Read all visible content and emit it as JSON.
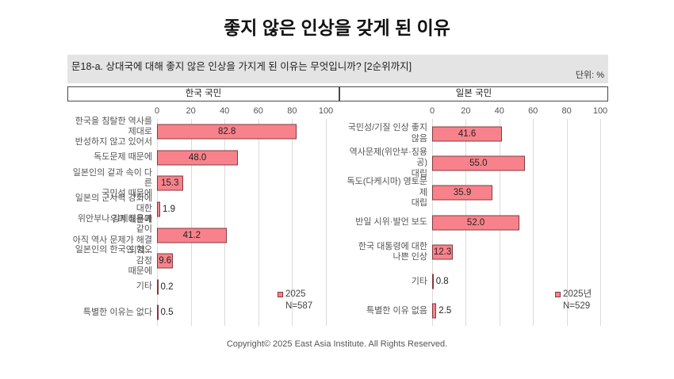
{
  "page": {
    "title": "좋지 않은 인상을 갖게 된 이유",
    "question": "문18-a. 상대국에 대해 좋지 않은 인상을 가지게 된 이유는 무엇입니까? [2순위까지]",
    "unit": "단위: %",
    "footer": "Copyright© 2025 East Asia Institute. All Rights Reserved."
  },
  "colors": {
    "bar_fill": "#F8828B",
    "bar_border": "#833A3F",
    "band_bg": "#E4E4E4",
    "grid": "#DBDBDB"
  },
  "chart_data": [
    {
      "type": "bar",
      "orientation": "horizontal",
      "panel_title": "한국 국민",
      "xlim": [
        0,
        100
      ],
      "xticks": [
        0,
        20,
        40,
        60,
        80,
        100
      ],
      "grid": true,
      "legend_position": "lower-right",
      "categories": [
        "한국을 침탈한 역사를 제대로\n반성하지 않고 있어서",
        "독도문제 때문에",
        "일본인의 겉과 속이 다른\n국민성 때문에",
        "일본의 군사력 강화에 대한\n우려 때문에",
        "위안부나 강제징용과 같이\n아직 역사 문제가 해결되지...",
        "일본인의 한국인 혐오 감정\n때문에",
        "기타",
        "특별한 이유는 없다"
      ],
      "values": [
        82.8,
        48.0,
        15.3,
        1.9,
        41.2,
        9.6,
        0.2,
        0.5
      ],
      "legend": {
        "series": "2025",
        "n_label": "N=587"
      }
    },
    {
      "type": "bar",
      "orientation": "horizontal",
      "panel_title": "일본 국민",
      "xlim": [
        0,
        100
      ],
      "xticks": [
        0,
        20,
        40,
        60,
        80,
        100
      ],
      "grid": true,
      "legend_position": "lower-right",
      "categories": [
        "국민성/기질 인상 좋지 않음",
        "역사문제(위안부·징용공)\n대립",
        "독도(다케시마) 영토문제\n대립",
        "반일 시위·발언 보도",
        "한국 대통령에 대한\n나쁜 인상",
        "기타",
        "특별한 이유 없음"
      ],
      "values": [
        41.6,
        55.0,
        35.9,
        52.0,
        12.3,
        0.8,
        2.5
      ],
      "legend": {
        "series": "2025년",
        "n_label": "N=529"
      }
    }
  ]
}
